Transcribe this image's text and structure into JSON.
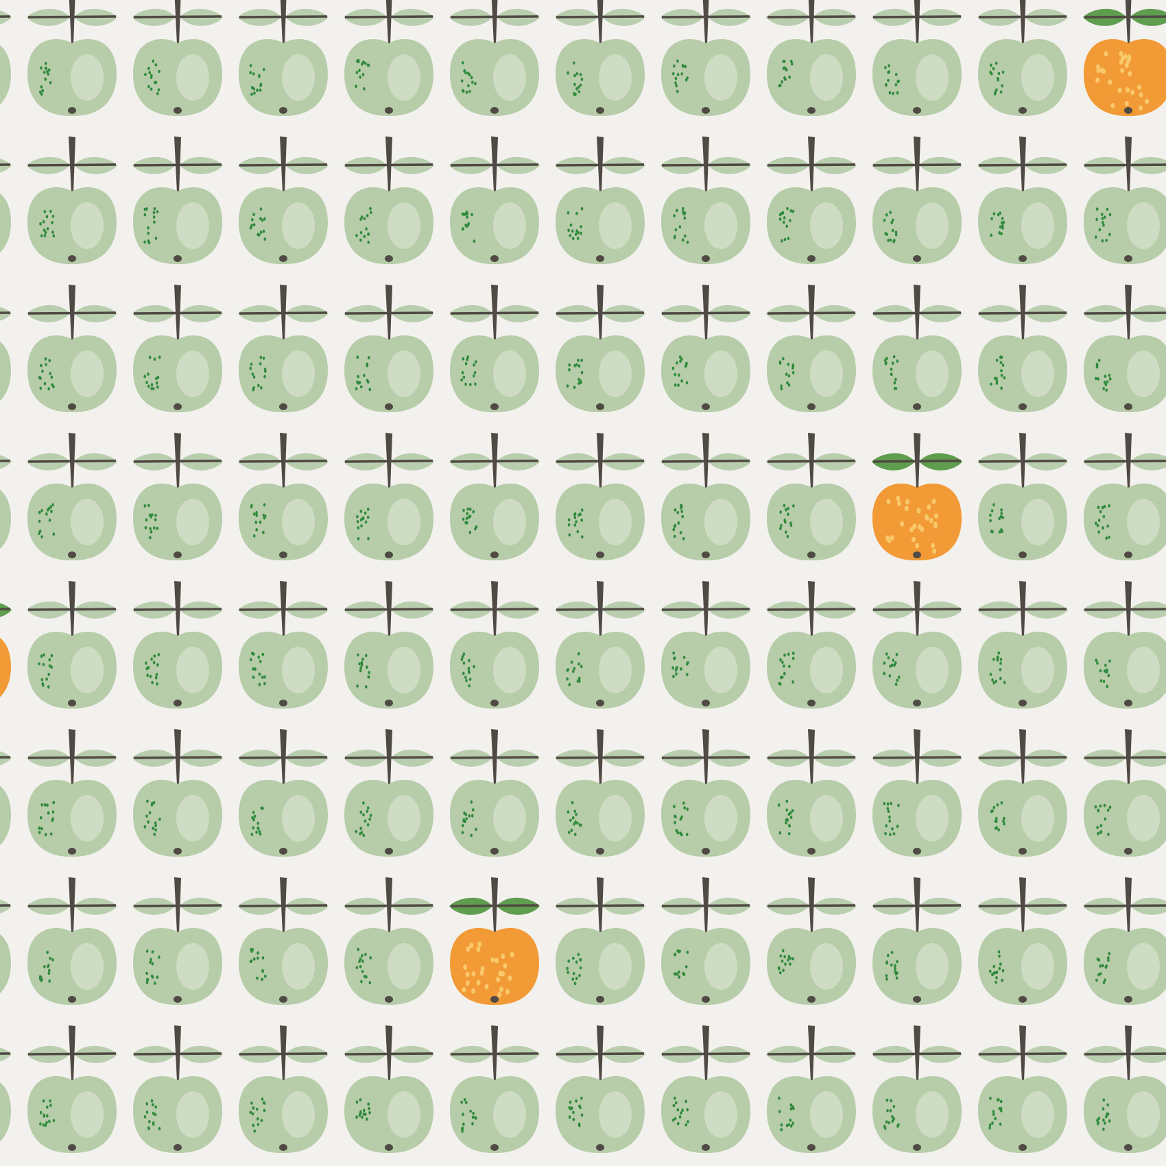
{
  "pattern": {
    "rows": 8,
    "columns": 13,
    "colors": {
      "background": "#f3f1ee",
      "green_apple": "#b7cca9",
      "green_apple_highlight": "#e2eadb",
      "green_leaf_pale": "#b9ceae",
      "green_leaf": "#5f9d4f",
      "orange_apple": "#f29a35",
      "orange_dot": "#f8c86a",
      "speckle": "#2f8a3c",
      "stem": "#4f4a43"
    },
    "orange_apples": [
      {
        "row": 0,
        "column": 11
      },
      {
        "row": 3,
        "column": 9
      },
      {
        "row": 4,
        "column": 0
      },
      {
        "row": 6,
        "column": 5
      }
    ]
  }
}
